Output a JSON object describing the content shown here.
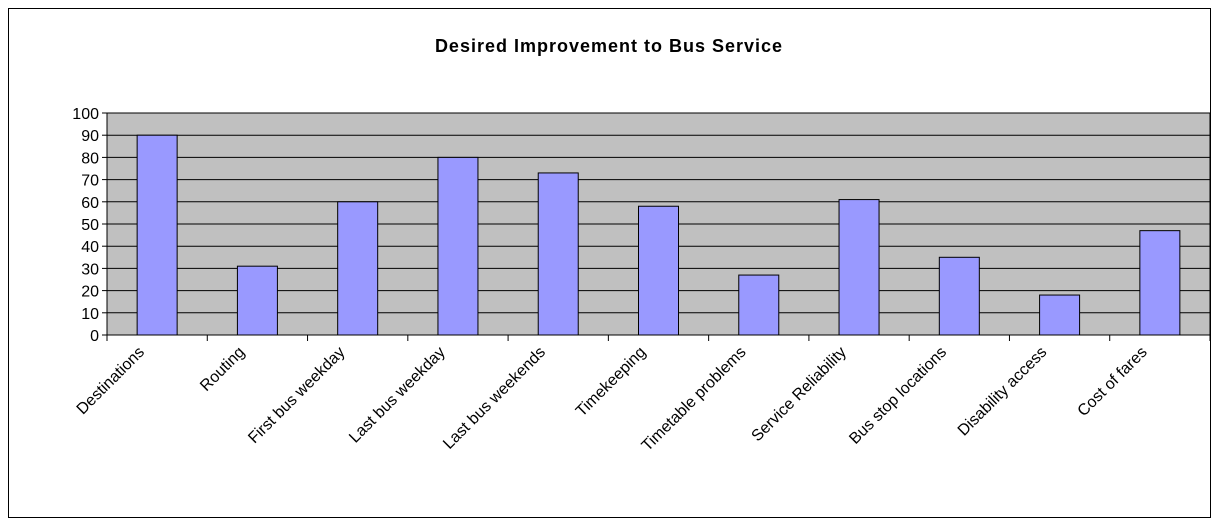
{
  "chart_data": {
    "type": "bar",
    "title": "Desired Improvement to Bus Service",
    "categories": [
      "Destinations",
      "Routing",
      "First bus weekday",
      "Last bus weekday",
      "Last bus weekends",
      "Timekeeping",
      "Timetable problems",
      "Service Reliability",
      "Bus stop locations",
      "Disability access",
      "Cost of fares"
    ],
    "values": [
      90,
      31,
      60,
      80,
      73,
      58,
      27,
      61,
      35,
      18,
      47
    ],
    "color": "#9999ff",
    "ylim": [
      0,
      100
    ],
    "yticks": [
      0,
      10,
      20,
      30,
      40,
      50,
      60,
      70,
      80,
      90,
      100
    ],
    "grid": true
  }
}
